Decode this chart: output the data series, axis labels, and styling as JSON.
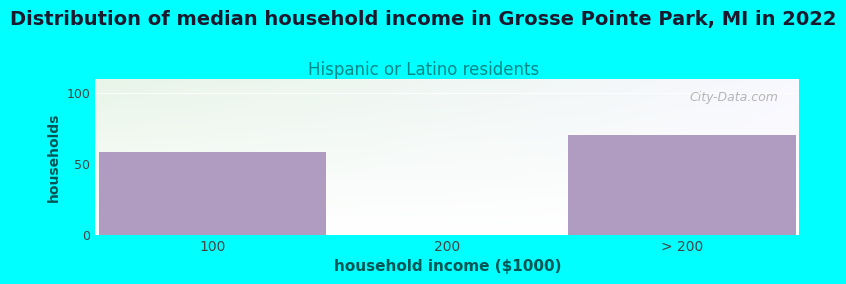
{
  "title": "Distribution of median household income in Grosse Pointe Park, MI in 2022",
  "subtitle": "Hispanic or Latino residents",
  "xlabel": "household income ($1000)",
  "ylabel": "households",
  "categories": [
    "100",
    "200",
    "> 200"
  ],
  "values": [
    58,
    0,
    70
  ],
  "bar_color": "#b09cc0",
  "background_color": "#00ffff",
  "plot_bg_color_topleft": "#e8f5e8",
  "plot_bg_color_topright": "#f8f8ff",
  "plot_bg_color_bottom": "#ffffff",
  "title_fontsize": 14,
  "title_color": "#1a1a2e",
  "subtitle_fontsize": 12,
  "subtitle_color": "#008888",
  "xlabel_color": "#005555",
  "ylabel_color": "#005555",
  "tick_color": "#444444",
  "ylim": [
    0,
    110
  ],
  "yticks": [
    0,
    50,
    100
  ],
  "watermark": "City-Data.com",
  "watermark_color": "#aaaaaa"
}
